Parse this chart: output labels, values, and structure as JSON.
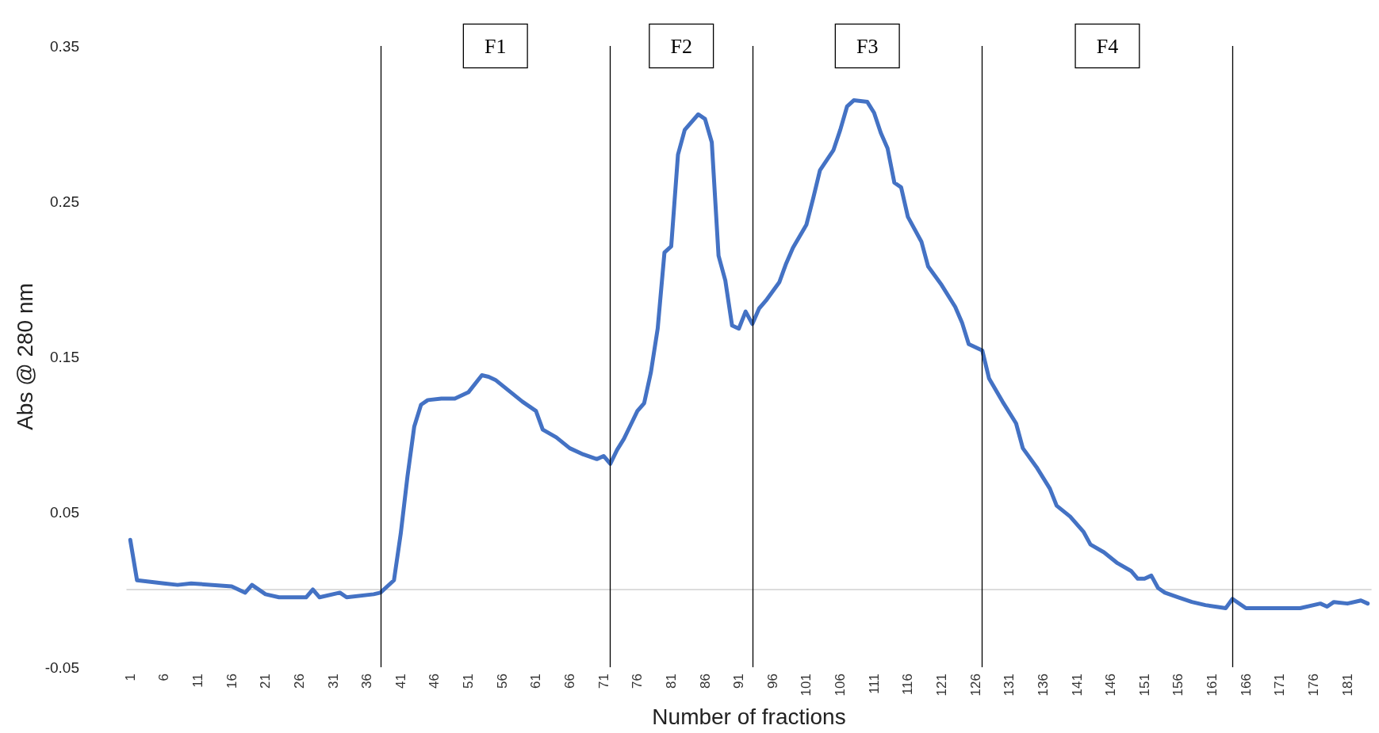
{
  "chart_data": {
    "type": "line",
    "xlabel": "Number of fractions",
    "ylabel": "Abs @ 280 nm",
    "xlim": [
      0.5,
      184.5
    ],
    "xticks": [
      1,
      6,
      11,
      16,
      21,
      26,
      31,
      36,
      41,
      46,
      51,
      56,
      61,
      66,
      71,
      76,
      81,
      86,
      91,
      96,
      101,
      106,
      111,
      116,
      121,
      126,
      131,
      136,
      141,
      146,
      151,
      156,
      161,
      166,
      171,
      176,
      181
    ],
    "ylim": [
      -0.05,
      0.35
    ],
    "yticks": [
      -0.05,
      0.05,
      0.15,
      0.25,
      0.35
    ],
    "grid": false,
    "marker": "none",
    "line_style": "solid",
    "series": [
      {
        "color": "#4472c4",
        "x": [
          1,
          2,
          6,
          8,
          10,
          16,
          18,
          19,
          21,
          23,
          27,
          28,
          29,
          32,
          33,
          37,
          38,
          40,
          41,
          42,
          43,
          44,
          45,
          47,
          49,
          51,
          53,
          54,
          55,
          57,
          59,
          61,
          62,
          64,
          66,
          68,
          70,
          71,
          72,
          73,
          74,
          75,
          76,
          77,
          78,
          79,
          80,
          81,
          82,
          83,
          85,
          86,
          87,
          88,
          89,
          90,
          91,
          92,
          93,
          94,
          95,
          97,
          98,
          99,
          101,
          102,
          103,
          105,
          106,
          107,
          108,
          110,
          111,
          112,
          113,
          114,
          115,
          116,
          118,
          119,
          121,
          123,
          124,
          125,
          127,
          128,
          130,
          132,
          133,
          135,
          137,
          138,
          140,
          142,
          143,
          145,
          147,
          149,
          150,
          151,
          152,
          153,
          154,
          156,
          158,
          160,
          163,
          164,
          166,
          169,
          174,
          177,
          178,
          179,
          181,
          183,
          184
        ],
        "values": [
          0.032,
          0.006,
          0.004,
          0.003,
          0.004,
          0.002,
          -0.002,
          0.003,
          -0.003,
          -0.005,
          -0.005,
          0,
          -0.005,
          -0.002,
          -0.005,
          -0.003,
          -0.002,
          0.006,
          0.036,
          0.073,
          0.105,
          0.119,
          0.122,
          0.123,
          0.123,
          0.127,
          0.138,
          0.137,
          0.135,
          0.128,
          0.121,
          0.115,
          0.103,
          0.098,
          0.091,
          0.087,
          0.084,
          0.086,
          0.081,
          0.09,
          0.097,
          0.106,
          0.115,
          0.12,
          0.14,
          0.168,
          0.217,
          0.221,
          0.28,
          0.296,
          0.306,
          0.303,
          0.288,
          0.215,
          0.199,
          0.17,
          0.168,
          0.179,
          0.171,
          0.181,
          0.186,
          0.198,
          0.21,
          0.22,
          0.235,
          0.252,
          0.27,
          0.283,
          0.296,
          0.311,
          0.315,
          0.314,
          0.307,
          0.294,
          0.284,
          0.262,
          0.259,
          0.24,
          0.224,
          0.208,
          0.196,
          0.182,
          0.172,
          0.158,
          0.154,
          0.136,
          0.121,
          0.107,
          0.091,
          0.079,
          0.065,
          0.054,
          0.047,
          0.037,
          0.029,
          0.024,
          0.017,
          0.012,
          0.007,
          0.007,
          0.009,
          0.001,
          -0.002,
          -0.005,
          -0.008,
          -0.01,
          -0.012,
          -0.006,
          -0.012,
          -0.012,
          -0.012,
          -0.009,
          -0.011,
          -0.008,
          -0.009,
          -0.007,
          -0.009
        ]
      }
    ],
    "ref_lines": [
      {
        "axis": "x",
        "value": 38,
        "color": "#000000"
      },
      {
        "axis": "x",
        "value": 72,
        "color": "#000000"
      },
      {
        "axis": "x",
        "value": 93,
        "color": "#000000"
      },
      {
        "axis": "x",
        "value": 127,
        "color": "#000000"
      },
      {
        "axis": "x",
        "value": 164,
        "color": "#000000"
      }
    ],
    "annotations": [
      "F1",
      "F2",
      "F3",
      "F4"
    ]
  }
}
